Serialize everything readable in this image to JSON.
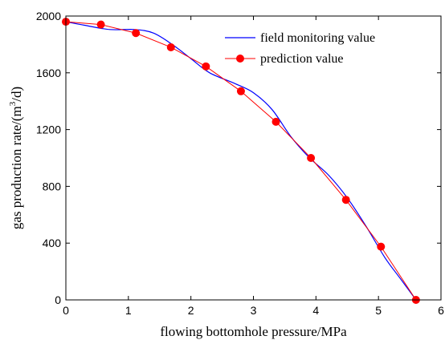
{
  "chart_data": {
    "type": "line",
    "xlabel": "flowing bottomhole pressure/MPa",
    "ylabel_prefix": "gas production rate/(m",
    "ylabel_sup": "3",
    "ylabel_suffix": "/d)",
    "xlim": [
      0,
      6
    ],
    "ylim": [
      0,
      2000
    ],
    "x_ticks": [
      0,
      1,
      2,
      3,
      4,
      5,
      6
    ],
    "y_ticks": [
      0,
      400,
      800,
      1200,
      1600,
      2000
    ],
    "legend_position": "top-right",
    "series": [
      {
        "name": "field monitoring value",
        "color": "#0000ff",
        "marker": "none",
        "smooth": true,
        "points": [
          {
            "x": 0.0,
            "y": 1960
          },
          {
            "x": 0.3,
            "y": 1935
          },
          {
            "x": 0.7,
            "y": 1905
          },
          {
            "x": 1.1,
            "y": 1905
          },
          {
            "x": 1.4,
            "y": 1880
          },
          {
            "x": 1.7,
            "y": 1800
          },
          {
            "x": 2.0,
            "y": 1700
          },
          {
            "x": 2.3,
            "y": 1600
          },
          {
            "x": 2.7,
            "y": 1525
          },
          {
            "x": 3.0,
            "y": 1460
          },
          {
            "x": 3.3,
            "y": 1340
          },
          {
            "x": 3.6,
            "y": 1150
          },
          {
            "x": 3.9,
            "y": 1000
          },
          {
            "x": 4.2,
            "y": 880
          },
          {
            "x": 4.5,
            "y": 720
          },
          {
            "x": 4.8,
            "y": 520
          },
          {
            "x": 5.1,
            "y": 300
          },
          {
            "x": 5.35,
            "y": 150
          },
          {
            "x": 5.6,
            "y": 0
          }
        ]
      },
      {
        "name": "prediction value",
        "color": "#ff0000",
        "marker": "circle",
        "smooth": false,
        "points": [
          {
            "x": 0.0,
            "y": 1960
          },
          {
            "x": 0.56,
            "y": 1940
          },
          {
            "x": 1.12,
            "y": 1880
          },
          {
            "x": 1.68,
            "y": 1780
          },
          {
            "x": 2.24,
            "y": 1645
          },
          {
            "x": 2.8,
            "y": 1470
          },
          {
            "x": 3.36,
            "y": 1255
          },
          {
            "x": 3.92,
            "y": 1000
          },
          {
            "x": 4.48,
            "y": 705
          },
          {
            "x": 5.04,
            "y": 375
          },
          {
            "x": 5.6,
            "y": 0
          }
        ]
      }
    ]
  }
}
